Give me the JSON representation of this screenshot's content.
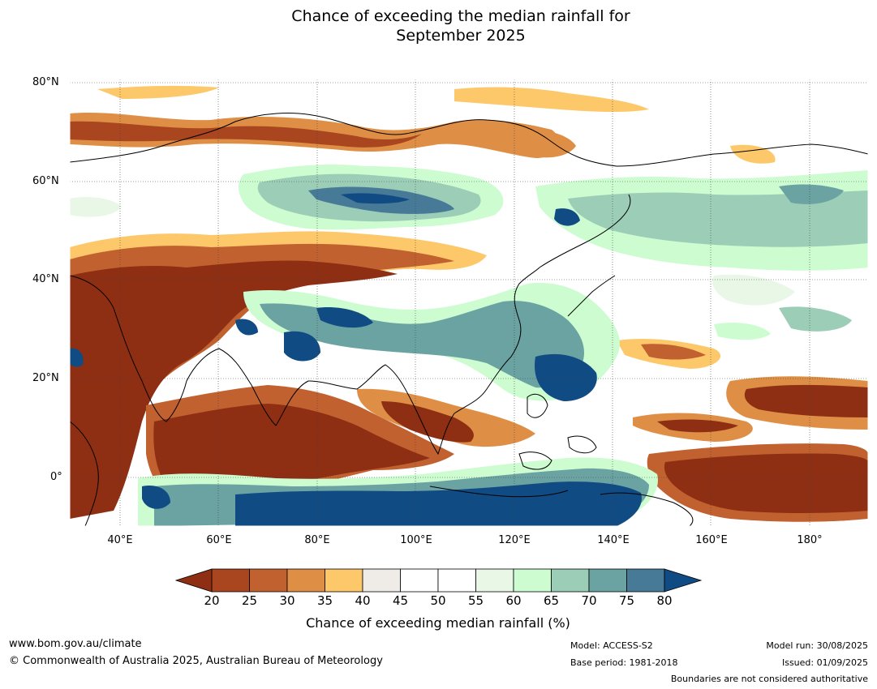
{
  "title": {
    "line1": "Chance of exceeding the median rainfall for",
    "line2": "September 2025"
  },
  "map": {
    "lat_ticks": [
      "80°N",
      "60°N",
      "40°N",
      "20°N",
      "0°"
    ],
    "lon_ticks": [
      "40°E",
      "60°E",
      "80°E",
      "100°E",
      "120°E",
      "140°E",
      "160°E",
      "180°"
    ],
    "colors": {
      "c20": "#8e2f14",
      "c25": "#a9461f",
      "c30": "#c26130",
      "c35": "#df8f45",
      "c40": "#fdc86a",
      "c45": "#efebe6",
      "c50": "#ffffff",
      "c55": "#ffffff",
      "c60": "#e8f7e6",
      "c65": "#ccfcd0",
      "c70": "#9ccdb7",
      "c75": "#6ba3a3",
      "c80": "#467a96",
      "c_gt80": "#104b84"
    }
  },
  "colorbar": {
    "ticks": [
      "20",
      "25",
      "30",
      "35",
      "40",
      "45",
      "50",
      "55",
      "60",
      "65",
      "70",
      "75",
      "80"
    ],
    "colors": [
      "#a9461f",
      "#c26130",
      "#df8f45",
      "#fdc86a",
      "#efebe6",
      "#ffffff",
      "#ffffff",
      "#e8f7e6",
      "#ccfcd0",
      "#9ccdb7",
      "#6ba3a3",
      "#467a96"
    ],
    "low_color": "#8e2f14",
    "high_color": "#104b84",
    "label": "Chance of exceeding median rainfall (%)"
  },
  "footer": {
    "website": "www.bom.gov.au/climate",
    "copyright": "© Commonwealth of Australia 2025, Australian Bureau of Meteorology",
    "model": "Model: ACCESS-S2",
    "base_period": "Base period: 1981-2018",
    "model_run": "Model run: 30/08/2025",
    "issued": "Issued: 01/09/2025",
    "disclaimer": "Boundaries are not considered authoritative"
  }
}
